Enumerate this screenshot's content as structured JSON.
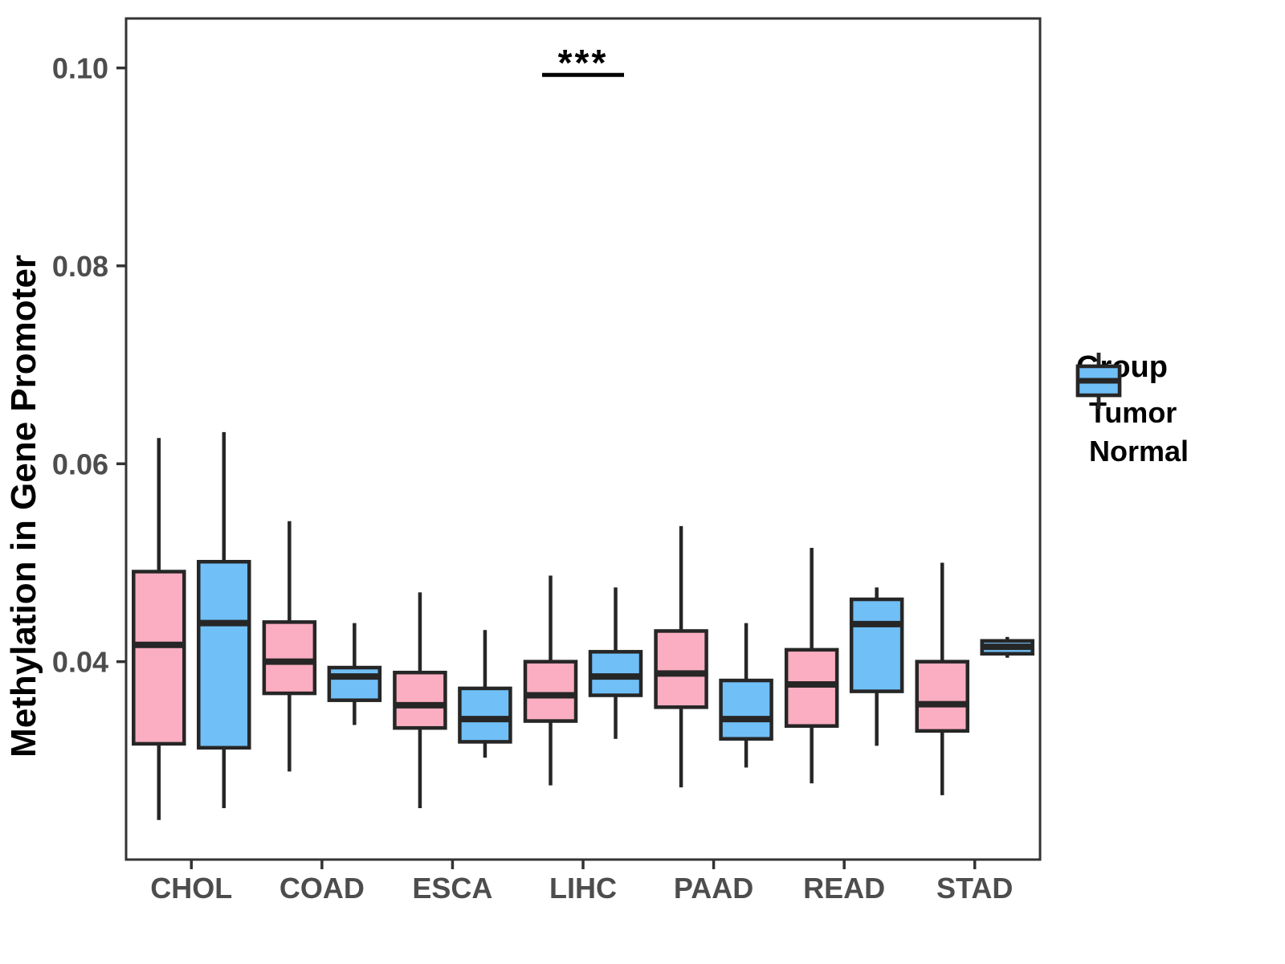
{
  "figure": {
    "background": "#ffffff"
  },
  "legend": {
    "title": "Group",
    "items": [
      {
        "label": "Tumor",
        "color": "#FBAEC1"
      },
      {
        "label": "Normal",
        "color": "#70BFF7"
      }
    ]
  },
  "chart_data": {
    "type": "boxplot",
    "title": "",
    "xlabel": "",
    "ylabel": "Methylation in Gene Promoter",
    "ylim": [
      0.02,
      0.105
    ],
    "grid": false,
    "legend_position": "right",
    "yticks": [
      {
        "value": 0.04,
        "label": "0.04"
      },
      {
        "value": 0.06,
        "label": "0.06"
      },
      {
        "value": 0.08,
        "label": "0.08"
      },
      {
        "value": 0.1,
        "label": "0.10"
      }
    ],
    "categories": [
      "CHOL",
      "COAD",
      "ESCA",
      "LIHC",
      "PAAD",
      "READ",
      "STAD"
    ],
    "groups": [
      "Tumor",
      "Normal"
    ],
    "colors": {
      "Tumor": "#FBAEC1",
      "Normal": "#70BFF7",
      "stroke": "#262626",
      "axis": "#333333",
      "tick_text": "#4d4d4d"
    },
    "series": [
      {
        "name": "Tumor",
        "boxes": [
          {
            "category": "CHOL",
            "min": 0.024,
            "q1": 0.0317,
            "median": 0.0417,
            "q3": 0.0491,
            "max": 0.0626
          },
          {
            "category": "COAD",
            "min": 0.0289,
            "q1": 0.0368,
            "median": 0.04,
            "q3": 0.044,
            "max": 0.0542
          },
          {
            "category": "ESCA",
            "min": 0.0252,
            "q1": 0.0333,
            "median": 0.0356,
            "q3": 0.0389,
            "max": 0.047
          },
          {
            "category": "LIHC",
            "min": 0.0275,
            "q1": 0.034,
            "median": 0.0366,
            "q3": 0.04,
            "max": 0.0487
          },
          {
            "category": "PAAD",
            "min": 0.0273,
            "q1": 0.0354,
            "median": 0.0388,
            "q3": 0.0431,
            "max": 0.0537
          },
          {
            "category": "READ",
            "min": 0.0277,
            "q1": 0.0335,
            "median": 0.0377,
            "q3": 0.0412,
            "max": 0.0515
          },
          {
            "category": "STAD",
            "min": 0.0265,
            "q1": 0.033,
            "median": 0.0357,
            "q3": 0.04,
            "max": 0.05
          }
        ]
      },
      {
        "name": "Normal",
        "boxes": [
          {
            "category": "CHOL",
            "min": 0.0252,
            "q1": 0.0313,
            "median": 0.0439,
            "q3": 0.0501,
            "max": 0.0632
          },
          {
            "category": "COAD",
            "min": 0.0336,
            "q1": 0.0361,
            "median": 0.0385,
            "q3": 0.0394,
            "max": 0.0439
          },
          {
            "category": "ESCA",
            "min": 0.0303,
            "q1": 0.0319,
            "median": 0.0342,
            "q3": 0.0373,
            "max": 0.0432
          },
          {
            "category": "LIHC",
            "min": 0.0322,
            "q1": 0.0366,
            "median": 0.0385,
            "q3": 0.041,
            "max": 0.0475
          },
          {
            "category": "PAAD",
            "min": 0.0293,
            "q1": 0.0322,
            "median": 0.0342,
            "q3": 0.0381,
            "max": 0.0439
          },
          {
            "category": "READ",
            "min": 0.0315,
            "q1": 0.037,
            "median": 0.0438,
            "q3": 0.0463,
            "max": 0.0475
          },
          {
            "category": "STAD",
            "min": 0.0404,
            "q1": 0.0408,
            "median": 0.0415,
            "q3": 0.0421,
            "max": 0.0425
          }
        ]
      }
    ],
    "annotation": {
      "text": "***",
      "category": "LIHC",
      "category_index": 3,
      "line_y": 0.0993
    }
  }
}
